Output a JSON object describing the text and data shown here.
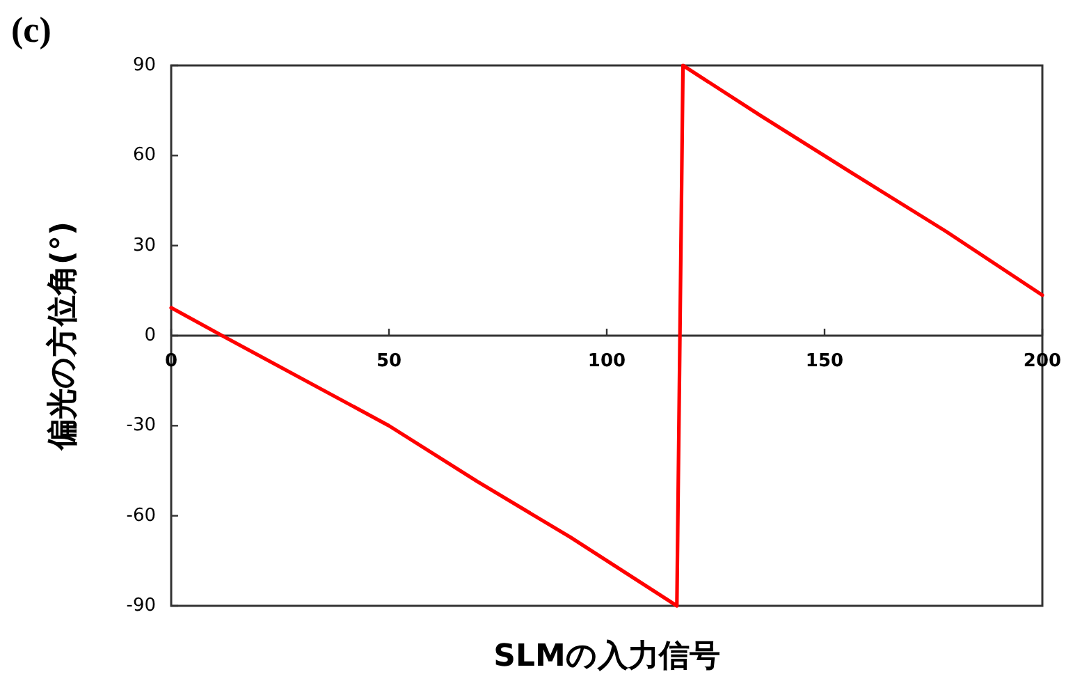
{
  "chart_data": {
    "type": "line",
    "annotations": [
      "(c)"
    ],
    "xlabel": "SLMの入力信号",
    "ylabel": "偏光の方位角(°)",
    "x": [
      0,
      11.7,
      50,
      70.3,
      91.6,
      116.1,
      117.5,
      135.3,
      156.5,
      177.9,
      200
    ],
    "series": [
      {
        "color": "#ff0000",
        "values": [
          9.3,
          0,
          -30,
          -48.6,
          -67.1,
          -90,
          90,
          73.3,
          54,
          34.7,
          13.5
        ]
      }
    ],
    "xlim": [
      0,
      200
    ],
    "xticks": [
      0,
      50,
      100,
      150,
      200
    ],
    "ylim": [
      -90,
      90
    ],
    "yticks": [
      -90,
      -60,
      -30,
      0,
      30,
      60,
      90
    ],
    "marker": "none",
    "line_style": "solid"
  }
}
